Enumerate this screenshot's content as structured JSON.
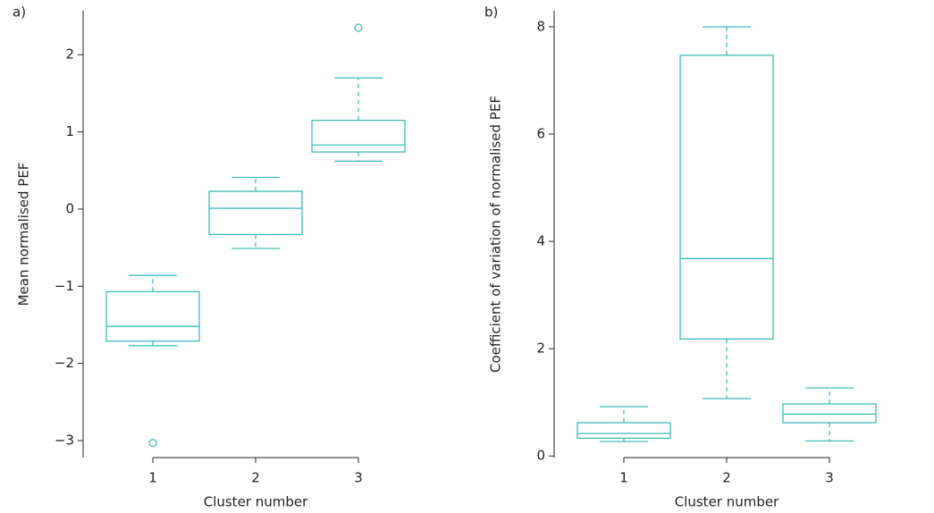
{
  "chart_data": [
    {
      "type": "box",
      "label": "a)",
      "xlabel": "Cluster number",
      "ylabel": "Mean normalised PEF",
      "color": "#3cbcbc",
      "categories": [
        "1",
        "2",
        "3"
      ],
      "ylim": [
        -3.22,
        2.57
      ],
      "yticks": [
        {
          "value": -3,
          "label": "−3"
        },
        {
          "value": -2,
          "label": "−2"
        },
        {
          "value": -1,
          "label": "−1"
        },
        0,
        1,
        2
      ],
      "boxes": [
        {
          "whislo": -1.77,
          "q1": -1.71,
          "med": -1.52,
          "q3": -1.07,
          "whishi": -0.86,
          "fliers": [
            -3.03
          ]
        },
        {
          "whislo": -0.51,
          "q1": -0.33,
          "med": 0.01,
          "q3": 0.23,
          "whishi": 0.41,
          "fliers": []
        },
        {
          "whislo": 0.62,
          "q1": 0.74,
          "med": 0.83,
          "q3": 1.15,
          "whishi": 1.7,
          "fliers": [
            2.35
          ]
        }
      ]
    },
    {
      "type": "box",
      "label": "b)",
      "xlabel": "Cluster number",
      "ylabel": "Coefficient of variation of normalised PEF",
      "color": "#3cbcbc",
      "categories": [
        "1",
        "2",
        "3"
      ],
      "ylim": [
        -0.03,
        8.3
      ],
      "yticks": [
        0,
        2,
        4,
        6,
        8
      ],
      "boxes": [
        {
          "whislo": 0.27,
          "q1": 0.33,
          "med": 0.42,
          "q3": 0.62,
          "whishi": 0.92,
          "fliers": []
        },
        {
          "whislo": 1.07,
          "q1": 2.18,
          "med": 3.68,
          "q3": 7.47,
          "whishi": 8.0,
          "fliers": []
        },
        {
          "whislo": 0.28,
          "q1": 0.62,
          "med": 0.78,
          "q3": 0.97,
          "whishi": 1.27,
          "fliers": []
        }
      ]
    }
  ]
}
